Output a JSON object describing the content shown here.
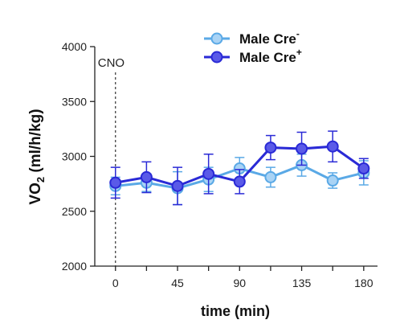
{
  "chart_data": {
    "type": "line",
    "xlabel": "time (min)",
    "ylabel_main": "VO",
    "ylabel_sub": "2",
    "ylabel_rest": " (ml/h/kg)",
    "xticks": [
      0,
      45,
      90,
      135,
      180
    ],
    "yticks": [
      2000,
      2500,
      3000,
      3500,
      4000
    ],
    "xlim": [
      -15,
      190
    ],
    "ylim": [
      2000,
      4000
    ],
    "annotation": {
      "text": "CNO",
      "x": 0
    },
    "series": [
      {
        "name_base": "Male Cre",
        "name_sup": "-",
        "color_fill": "#a9d3f5",
        "color_line": "#5aa9e6",
        "x": [
          0,
          22.5,
          45,
          67.5,
          90,
          112.5,
          135,
          157.5,
          180
        ],
        "y": [
          2730,
          2760,
          2710,
          2790,
          2890,
          2810,
          2920,
          2780,
          2850
        ],
        "err": [
          80,
          80,
          150,
          110,
          100,
          90,
          100,
          70,
          110
        ]
      },
      {
        "name_base": "Male Cre",
        "name_sup": "+",
        "color_fill": "#5a5ae8",
        "color_line": "#2a2ad6",
        "x": [
          0,
          22.5,
          45,
          67.5,
          90,
          112.5,
          135,
          157.5,
          180
        ],
        "y": [
          2760,
          2810,
          2730,
          2840,
          2770,
          3080,
          3070,
          3090,
          2890
        ],
        "err": [
          140,
          140,
          170,
          180,
          110,
          110,
          150,
          140,
          90
        ]
      }
    ]
  }
}
